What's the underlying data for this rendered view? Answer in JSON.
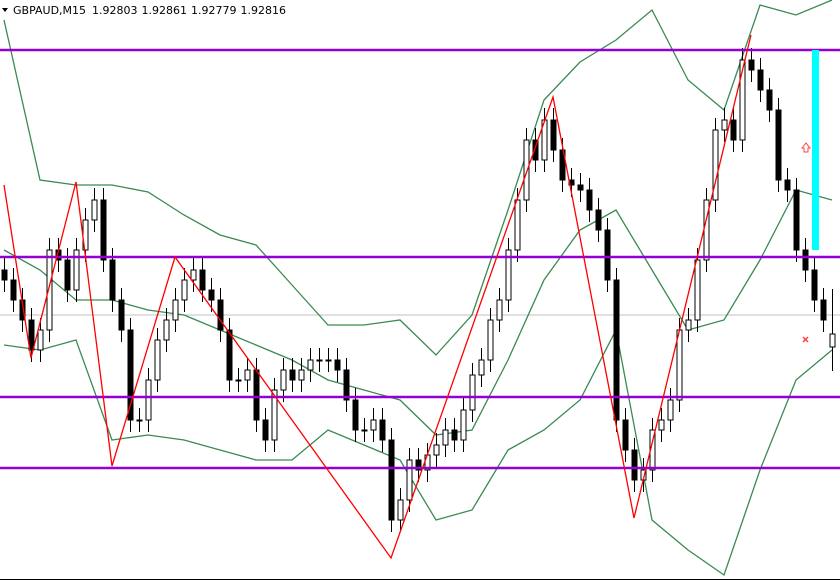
{
  "chart_data": {
    "type": "candlestick",
    "title": "GBPAUD,M15",
    "ylim": [
      1.92569,
      1.9315
    ],
    "bull_color": "#ffffff",
    "bear_color": "#000000",
    "open": [
      1.9288,
      1.9287,
      1.9285,
      1.9283,
      1.928,
      1.9282,
      1.929,
      1.9289,
      1.9286,
      1.929,
      1.9293,
      1.9295,
      1.9289,
      1.9285,
      1.9282,
      1.9273,
      1.9273,
      1.9277,
      1.9281,
      1.9283,
      1.9285,
      1.9287,
      1.9288,
      1.9286,
      1.9285,
      1.9282,
      1.9277,
      1.9277,
      1.9278,
      1.9273,
      1.9271,
      1.9276,
      1.9278,
      1.9277,
      1.9278,
      1.9279,
      1.9279,
      1.9279,
      1.9278,
      1.9275,
      1.9272,
      1.9272,
      1.9273,
      1.9271,
      1.9263,
      1.9265,
      1.9269,
      1.9268,
      1.92695,
      1.92705,
      1.9272,
      1.9271,
      1.9274,
      1.92775,
      1.9279,
      1.9283,
      1.9285,
      1.929,
      1.9295,
      1.9301,
      1.9299,
      1.9303,
      1.93,
      1.9297,
      1.92965,
      1.9296,
      1.9294,
      1.9292,
      1.9287,
      1.9273,
      1.927,
      1.9267,
      1.9268,
      1.9272,
      1.9273,
      1.9275,
      1.9282,
      1.9283,
      1.9289,
      1.9295,
      1.9302,
      1.9303,
      1.9301,
      1.9309,
      1.9308,
      1.9306,
      1.9304,
      1.9297,
      1.9296,
      1.929,
      1.9288,
      1.9285,
      1.92803
    ],
    "high": [
      1.92892,
      1.92882,
      1.92862,
      1.92842,
      1.92832,
      1.92912,
      1.92912,
      1.92902,
      1.92912,
      1.92942,
      1.92962,
      1.92962,
      1.92902,
      1.92862,
      1.92832,
      1.92742,
      1.92782,
      1.92822,
      1.92842,
      1.92862,
      1.92882,
      1.92892,
      1.92892,
      1.92872,
      1.92862,
      1.92832,
      1.92782,
      1.92792,
      1.92792,
      1.92742,
      1.92772,
      1.92792,
      1.92792,
      1.92792,
      1.92802,
      1.92802,
      1.92802,
      1.92802,
      1.92792,
      1.92762,
      1.92732,
      1.92742,
      1.92742,
      1.92722,
      1.92662,
      1.92702,
      1.92702,
      1.92707,
      1.92717,
      1.92732,
      1.92732,
      1.92752,
      1.92787,
      1.92802,
      1.92842,
      1.92862,
      1.92912,
      1.92962,
      1.93022,
      1.93022,
      1.93042,
      1.93042,
      1.93012,
      1.92982,
      1.92977,
      1.92972,
      1.92952,
      1.92932,
      1.92882,
      1.92742,
      1.92712,
      1.92692,
      1.92732,
      1.92742,
      1.92762,
      1.92832,
      1.92842,
      1.92902,
      1.92962,
      1.93032,
      1.93042,
      1.93042,
      1.93102,
      1.93102,
      1.93092,
      1.93072,
      1.93052,
      1.92982,
      1.92972,
      1.92912,
      1.92892,
      1.92862,
      1.92861
    ],
    "low": [
      1.92858,
      1.92838,
      1.92818,
      1.92788,
      1.92788,
      1.92808,
      1.92878,
      1.92848,
      1.92848,
      1.92888,
      1.92918,
      1.92878,
      1.92838,
      1.92808,
      1.92718,
      1.92718,
      1.92718,
      1.92758,
      1.92798,
      1.92818,
      1.92838,
      1.92858,
      1.92848,
      1.92838,
      1.92808,
      1.92758,
      1.92758,
      1.92758,
      1.92718,
      1.92698,
      1.92698,
      1.92748,
      1.92758,
      1.92758,
      1.92768,
      1.92778,
      1.92778,
      1.92768,
      1.92738,
      1.92708,
      1.92708,
      1.92708,
      1.92698,
      1.92618,
      1.92618,
      1.92638,
      1.92668,
      1.92668,
      1.92683,
      1.92693,
      1.92698,
      1.92698,
      1.92728,
      1.92763,
      1.92778,
      1.92818,
      1.92838,
      1.92888,
      1.92938,
      1.92978,
      1.92978,
      1.92988,
      1.92958,
      1.92953,
      1.92948,
      1.92928,
      1.92908,
      1.92858,
      1.92718,
      1.92688,
      1.92658,
      1.92658,
      1.92668,
      1.92708,
      1.92718,
      1.92738,
      1.92808,
      1.92818,
      1.92878,
      1.92938,
      1.93008,
      1.92998,
      1.92998,
      1.93068,
      1.93048,
      1.93028,
      1.92958,
      1.92948,
      1.92888,
      1.92868,
      1.92838,
      1.92818,
      1.92779
    ],
    "close": [
      1.9287,
      1.9285,
      1.9283,
      1.928,
      1.9282,
      1.929,
      1.9289,
      1.9286,
      1.929,
      1.9293,
      1.9295,
      1.9289,
      1.9285,
      1.9282,
      1.9273,
      1.9273,
      1.9277,
      1.9281,
      1.9283,
      1.9285,
      1.9287,
      1.9288,
      1.9286,
      1.9285,
      1.9282,
      1.9277,
      1.9277,
      1.9278,
      1.9273,
      1.9271,
      1.9276,
      1.9278,
      1.9277,
      1.9278,
      1.9279,
      1.9279,
      1.9279,
      1.9278,
      1.9275,
      1.9272,
      1.9272,
      1.9273,
      1.9271,
      1.9263,
      1.9265,
      1.9269,
      1.9268,
      1.92695,
      1.92705,
      1.9272,
      1.9271,
      1.9274,
      1.92775,
      1.9279,
      1.9283,
      1.9285,
      1.929,
      1.9295,
      1.9301,
      1.9299,
      1.9303,
      1.93,
      1.9297,
      1.92965,
      1.9296,
      1.9294,
      1.9292,
      1.9287,
      1.9273,
      1.927,
      1.9267,
      1.9268,
      1.9272,
      1.9273,
      1.9275,
      1.9282,
      1.9283,
      1.9289,
      1.9295,
      1.9302,
      1.9303,
      1.9301,
      1.9309,
      1.9308,
      1.9306,
      1.9304,
      1.9297,
      1.9296,
      1.929,
      1.9288,
      1.9285,
      1.9283,
      1.92816
    ],
    "bands": {
      "color": "#3a8a52",
      "x": [
        0,
        4,
        8,
        12,
        16,
        20,
        24,
        28,
        32,
        36,
        40,
        44,
        48,
        52,
        56,
        60,
        64,
        68,
        72,
        76,
        80,
        84,
        88,
        92
      ],
      "series": [
        {
          "values": [
            1.9313,
            1.9297,
            1.92965,
            1.92965,
            1.92958,
            1.92935,
            1.92915,
            1.92905,
            1.92865,
            1.92825,
            1.92825,
            1.9283,
            1.92795,
            1.92835,
            1.9294,
            1.9305,
            1.93088,
            1.9311,
            1.9314,
            1.9307,
            1.9304,
            1.93145,
            1.93135,
            1.9315
          ]
        },
        {
          "values": [
            1.929,
            1.9288,
            1.9285,
            1.9285,
            1.9284,
            1.92835,
            1.9282,
            1.92805,
            1.9279,
            1.9277,
            1.9276,
            1.9275,
            1.92715,
            1.9272,
            1.9279,
            1.9287,
            1.9292,
            1.9294,
            1.9288,
            1.9282,
            1.9283,
            1.9289,
            1.9296,
            1.9295
          ]
        },
        {
          "values": [
            1.92805,
            1.928,
            1.9281,
            1.9271,
            1.92715,
            1.9271,
            1.927,
            1.9269,
            1.9269,
            1.9272,
            1.92705,
            1.9269,
            1.9263,
            1.9264,
            1.927,
            1.9272,
            1.9275,
            1.9282,
            1.9263,
            1.926,
            1.92575,
            1.9268,
            1.9277,
            1.928
          ]
        }
      ]
    },
    "zigzag": {
      "color": "#ff0000",
      "x": [
        0,
        3,
        8,
        12,
        19,
        43,
        61,
        70,
        83
      ],
      "values": [
        1.92965,
        1.92792,
        1.92968,
        1.92684,
        1.92893,
        1.92592,
        1.93053,
        1.92632,
        1.93115
      ]
    },
    "levels": {
      "color": "#9400d3",
      "values": [
        1.931,
        1.92893,
        1.92753,
        1.92682
      ]
    },
    "bid_line": {
      "color": "#c0c0c0",
      "value": 1.92835
    }
  }
}
